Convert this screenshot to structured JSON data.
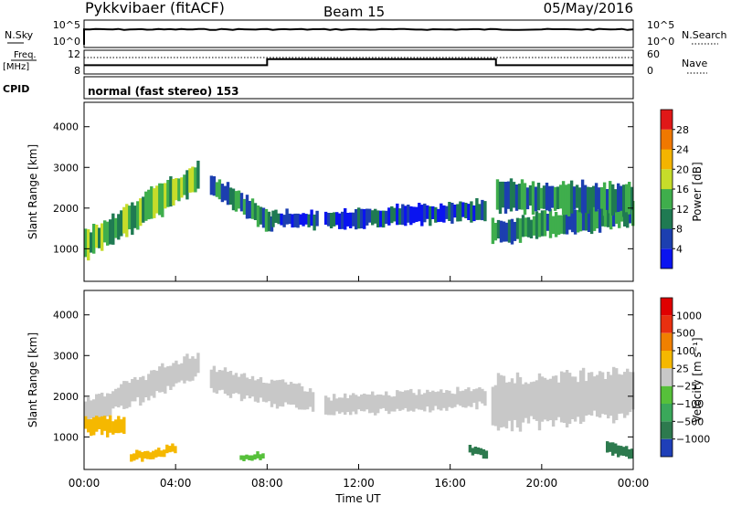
{
  "header": {
    "station": "Pykkvibaer (fitACF)",
    "beam": "Beam 15",
    "date": "05/May/2016"
  },
  "noise_panel": {
    "left_label": "N.Sky",
    "right_label": "N.Search",
    "tick_top_left": "10^5",
    "tick_bottom_left": "10^0",
    "tick_top_right": "10^5",
    "tick_bottom_right": "10^0",
    "level_log10": 3.5
  },
  "freq_panel": {
    "left_label_1": "Freq.",
    "left_label_2": "[MHz]",
    "right_label": "Nave",
    "left_ticks": [
      "12",
      "8"
    ],
    "right_ticks": [
      "60",
      "0"
    ],
    "freq_segments": [
      {
        "t0": 0.0,
        "t1": 8.0,
        "mhz": 9.4
      },
      {
        "t0": 8.0,
        "t1": 18.0,
        "mhz": 10.8
      },
      {
        "t0": 18.0,
        "t1": 24.0,
        "mhz": 9.4
      }
    ],
    "nave_dotted": 48
  },
  "cpid_panel": {
    "label": "CPID",
    "text": "normal (fast stereo) 153"
  },
  "chart_data": [
    {
      "type": "heatmap",
      "name": "power",
      "ylabel": "Slant Range [km]",
      "ylim": [
        200,
        4600
      ],
      "yticks": [
        "1000",
        "2000",
        "3000",
        "4000"
      ],
      "colorbar": {
        "label": "Power [dB]",
        "ticks": [
          "4",
          "8",
          "12",
          "16",
          "20",
          "24",
          "28"
        ],
        "colors": [
          "#0a14f0",
          "#1c3fb0",
          "#1f7a52",
          "#3fae4c",
          "#c6dc2a",
          "#f4b400",
          "#f07800",
          "#e01818"
        ]
      },
      "regions": [
        {
          "t0": 0.0,
          "t1": 5.0,
          "r_start": 1100,
          "r_end": 2800,
          "thick": 700,
          "hot": 2
        },
        {
          "t0": 5.5,
          "t1": 8.2,
          "r_start": 2600,
          "r_end": 1600,
          "thick": 500,
          "hot": 1
        },
        {
          "t0": 8.2,
          "t1": 10.2,
          "r_start": 1750,
          "r_end": 1700,
          "thick": 350,
          "hot": 0
        },
        {
          "t0": 10.5,
          "t1": 17.5,
          "r_start": 1700,
          "r_end": 1950,
          "thick": 450,
          "hot": 0
        },
        {
          "t0": 17.8,
          "t1": 24.0,
          "r_start": 1400,
          "r_end": 1900,
          "thick": 600,
          "hot": 1
        },
        {
          "t0": 18.0,
          "t1": 24.0,
          "r_start": 2300,
          "r_end": 2200,
          "thick": 700,
          "hot": 1
        }
      ]
    },
    {
      "type": "heatmap",
      "name": "velocity",
      "ylabel": "Slant Range [km]",
      "ylim": [
        200,
        4600
      ],
      "yticks": [
        "1000",
        "2000",
        "3000",
        "4000"
      ],
      "colorbar": {
        "label": "Velocity [m s⁻¹]",
        "ticks": [
          "1000",
          "500",
          "100",
          "25",
          "−25",
          "−100",
          "−500",
          "−1000"
        ],
        "colors": [
          "#1f3fb8",
          "#2d7a4e",
          "#3aa85a",
          "#56c03a",
          "#c8c8c8",
          "#f5b800",
          "#f08000",
          "#e83010",
          "#e00000"
        ]
      },
      "regions": [
        {
          "t0": 0.0,
          "t1": 5.0,
          "r_start": 1600,
          "r_end": 2800,
          "thick": 600,
          "color": "#c8c8c8"
        },
        {
          "t0": 0.0,
          "t1": 1.7,
          "r_start": 1300,
          "r_end": 1250,
          "thick": 400,
          "color": "#f5b800"
        },
        {
          "t0": 5.5,
          "t1": 10.0,
          "r_start": 2400,
          "r_end": 1900,
          "thick": 600,
          "color": "#c8c8c8"
        },
        {
          "t0": 10.5,
          "t1": 17.5,
          "r_start": 1750,
          "r_end": 2000,
          "thick": 450,
          "color": "#c8c8c8"
        },
        {
          "t0": 17.8,
          "t1": 24.0,
          "r_start": 1800,
          "r_end": 2100,
          "thick": 1200,
          "color": "#c8c8c8"
        },
        {
          "t0": 2.0,
          "t1": 4.0,
          "r_start": 500,
          "r_end": 700,
          "thick": 200,
          "color": "#f5b800"
        },
        {
          "t0": 6.8,
          "t1": 7.8,
          "r_start": 500,
          "r_end": 500,
          "thick": 150,
          "color": "#56c03a"
        },
        {
          "t0": 16.8,
          "t1": 17.6,
          "r_start": 700,
          "r_end": 600,
          "thick": 200,
          "color": "#2d7a4e"
        },
        {
          "t0": 22.8,
          "t1": 24.0,
          "r_start": 700,
          "r_end": 600,
          "thick": 300,
          "color": "#2d7a4e"
        }
      ]
    }
  ],
  "xaxis": {
    "label": "Time UT",
    "range": [
      0,
      24
    ],
    "tick_labels": [
      "00:00",
      "04:00",
      "08:00",
      "12:00",
      "16:00",
      "20:00",
      "00:00"
    ],
    "tick_hours": [
      0,
      4,
      8,
      12,
      16,
      20,
      24
    ]
  }
}
